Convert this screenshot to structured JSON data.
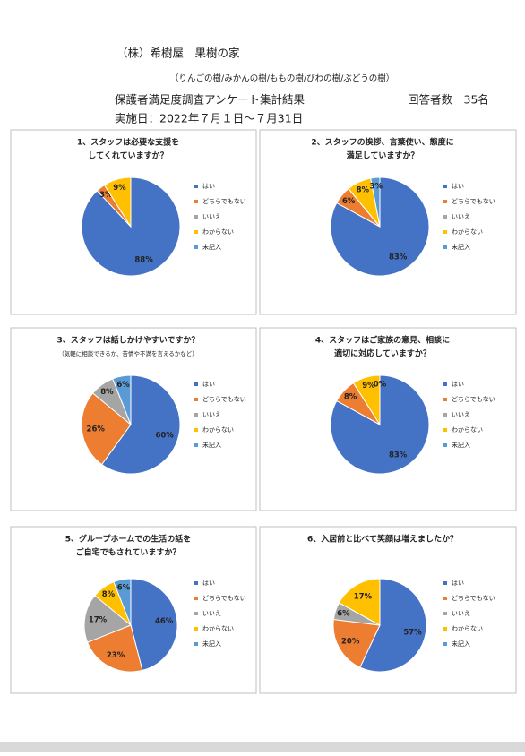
{
  "header": {
    "company": "（株）希樹屋　果樹の家",
    "homes": "（りんごの樹/みかんの樹/ももの樹/びわの樹/ぶどうの樹）",
    "report": "保護者満足度調査アンケート集計結果",
    "respondents": "回答者数　35名",
    "date": "実施日：2022年７月１日～７月31日"
  },
  "chart_data": [
    {
      "type": "pie",
      "title": [
        "1、スタッフは必要な支援を",
        "してくれていますか？"
      ],
      "categories": [
        "はい",
        "どちらでもない",
        "いいえ",
        "わからない",
        "未記入"
      ],
      "values": [
        88,
        3,
        0,
        9,
        0
      ],
      "value_labels": [
        "88%",
        "3%",
        null,
        "9%",
        null
      ],
      "colors": [
        "#4472c4",
        "#ed7d31",
        "#a5a5a5",
        "#ffc000",
        "#5b9bd5"
      ]
    },
    {
      "type": "pie",
      "title": [
        "2、スタッフの挨拶、言葉使い、態度に",
        "満足していますか？"
      ],
      "categories": [
        "はい",
        "どちらでもない",
        "いいえ",
        "わからない",
        "未記入"
      ],
      "values": [
        83,
        6,
        0,
        8,
        3
      ],
      "value_labels": [
        "83%",
        "6%",
        null,
        "8%",
        "3%"
      ],
      "colors": [
        "#4472c4",
        "#ed7d31",
        "#a5a5a5",
        "#ffc000",
        "#5b9bd5"
      ]
    },
    {
      "type": "pie",
      "title": [
        "3、スタッフは話しかけやすいですか？"
      ],
      "subtitle": "（気軽に相談できるか、苦情や不満を言えるかなど）",
      "categories": [
        "はい",
        "どちらでもない",
        "いいえ",
        "わからない",
        "未記入"
      ],
      "values": [
        60,
        26,
        8,
        0,
        6
      ],
      "value_labels": [
        "60%",
        "26%",
        "8%",
        null,
        "6%"
      ],
      "colors": [
        "#4472c4",
        "#ed7d31",
        "#a5a5a5",
        "#ffc000",
        "#5b9bd5"
      ]
    },
    {
      "type": "pie",
      "title": [
        "4、スタッフはご家族の意見、相談に",
        "適切に対応していますか？"
      ],
      "categories": [
        "はい",
        "どちらでもない",
        "いいえ",
        "わからない",
        "未記入"
      ],
      "values": [
        83,
        8,
        0,
        9,
        0
      ],
      "value_labels": [
        "83%",
        "8%",
        null,
        "9%",
        "0%"
      ],
      "colors": [
        "#4472c4",
        "#ed7d31",
        "#a5a5a5",
        "#ffc000",
        "#5b9bd5"
      ]
    },
    {
      "type": "pie",
      "title": [
        "5、グループホームでの生活の話を",
        "ご自宅でもされていますか？"
      ],
      "categories": [
        "はい",
        "どちらでもない",
        "いいえ",
        "わからない",
        "未記入"
      ],
      "values": [
        46,
        23,
        17,
        8,
        6
      ],
      "value_labels": [
        "46%",
        "23%",
        "17%",
        "8%",
        "6%"
      ],
      "colors": [
        "#4472c4",
        "#ed7d31",
        "#a5a5a5",
        "#ffc000",
        "#5b9bd5"
      ]
    },
    {
      "type": "pie",
      "title": [
        "6、入居前と比べて笑顔は増えましたか？"
      ],
      "categories": [
        "はい",
        "どちらでもない",
        "いいえ",
        "わからない",
        "未記入"
      ],
      "values": [
        57,
        20,
        6,
        17,
        0
      ],
      "value_labels": [
        "57%",
        "20%",
        "6%",
        "17%",
        null
      ],
      "colors": [
        "#4472c4",
        "#ed7d31",
        "#a5a5a5",
        "#ffc000",
        "#5b9bd5"
      ]
    }
  ]
}
